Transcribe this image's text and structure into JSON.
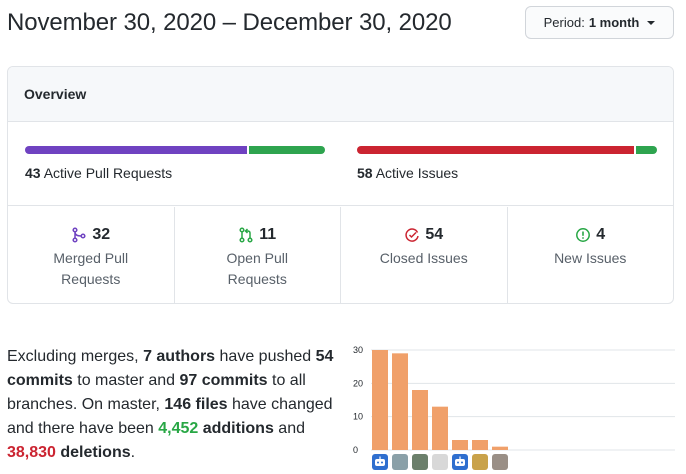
{
  "header": {
    "date_range": "November 30, 2020 – December 30, 2020",
    "period_label": "Period:",
    "period_value": "1 month"
  },
  "overview": {
    "title": "Overview",
    "pull_requests": {
      "count": "43",
      "label": "Active Pull Requests",
      "merged": 32,
      "open": 11,
      "colors": {
        "merged": "#6f42c1",
        "open": "#2ea44f"
      }
    },
    "issues": {
      "count": "58",
      "label": "Active Issues",
      "closed": 54,
      "new": 4,
      "colors": {
        "closed": "#cb2431",
        "new": "#2ea44f"
      }
    },
    "stats": [
      {
        "icon": "git-merge-icon",
        "count": "32",
        "label": "Merged Pull Requests",
        "color": "#6f42c1"
      },
      {
        "icon": "git-pull-request-icon",
        "count": "11",
        "label": "Open Pull Requests",
        "color": "#28a745"
      },
      {
        "icon": "issue-closed-icon",
        "count": "54",
        "label": "Closed Issues",
        "color": "#cb2431"
      },
      {
        "icon": "issue-opened-icon",
        "count": "4",
        "label": "New Issues",
        "color": "#28a745"
      }
    ]
  },
  "summary": {
    "p1": "Excluding merges, ",
    "authors": "7 authors",
    "p2": " have pushed ",
    "commits_master": "54 commits",
    "p3": " to master and ",
    "commits_all": "97 commits",
    "p4": " to all branches. On master, ",
    "files": "146 files",
    "p5": " have changed and there have been ",
    "additions_num": "4,452",
    "additions_word": " additions",
    "p6": " and ",
    "deletions_num": "38,830",
    "deletions_word": " deletions",
    "p7": "."
  },
  "chart_data": {
    "type": "bar",
    "values": [
      30,
      29,
      18,
      13,
      3,
      3,
      1
    ],
    "ylim": [
      0,
      30
    ],
    "yticks": [
      "30",
      "20",
      "10",
      "0"
    ],
    "bar_color": "#f0a06a",
    "grid": true
  },
  "avatars": [
    {
      "icon": "bot-avatar-icon",
      "color": "#2f6fcf"
    },
    {
      "icon": "user-avatar-icon",
      "color": "#8aa0a8"
    },
    {
      "icon": "user-avatar-icon",
      "color": "#6b7f6b"
    },
    {
      "icon": "user-avatar-icon",
      "color": "#d8d8d8"
    },
    {
      "icon": "bot-avatar-icon",
      "color": "#2f6fcf"
    },
    {
      "icon": "user-avatar-icon",
      "color": "#c9a24a"
    },
    {
      "icon": "user-avatar-icon",
      "color": "#9a8f86"
    }
  ]
}
